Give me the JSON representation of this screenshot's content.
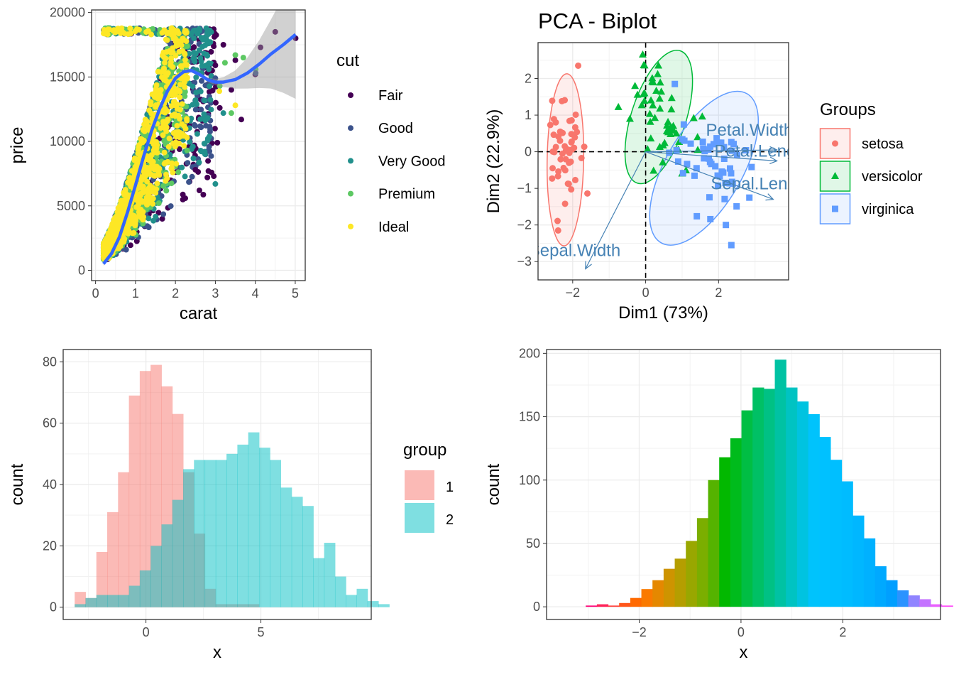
{
  "chart_data": [
    {
      "id": "diamonds",
      "type": "scatter",
      "xlabel": "carat",
      "ylabel": "price",
      "xlim": [
        -0.1,
        5.25
      ],
      "ylim": [
        -800,
        20200
      ],
      "x_ticks": [
        0,
        1,
        2,
        3,
        4,
        5
      ],
      "y_ticks": [
        0,
        5000,
        10000,
        15000,
        20000
      ],
      "legend": {
        "title": "cut",
        "position": "right",
        "entries": [
          {
            "label": "Fair",
            "color": "#440154"
          },
          {
            "label": "Good",
            "color": "#3b528b"
          },
          {
            "label": "Very Good",
            "color": "#21908c"
          },
          {
            "label": "Premium",
            "color": "#5dc863"
          },
          {
            "label": "Ideal",
            "color": "#fde725"
          }
        ]
      },
      "smooth_color": "#3366ff",
      "smooth": {
        "x": [
          0.2,
          0.4,
          0.6,
          0.8,
          1.0,
          1.2,
          1.4,
          1.6,
          1.8,
          2.0,
          2.2,
          2.4,
          2.6,
          2.8,
          3.0,
          3.2,
          3.5,
          3.8,
          4.1,
          4.4,
          4.7,
          5.01
        ],
        "y": [
          500,
          1300,
          2600,
          4500,
          6600,
          8800,
          10800,
          12500,
          13900,
          14900,
          15400,
          15500,
          15200,
          14800,
          14600,
          14600,
          14800,
          15300,
          16000,
          16800,
          17500,
          18300
        ]
      },
      "outliers": [
        {
          "x": 3.0,
          "y": 15900,
          "cut": "Fair"
        },
        {
          "x": 3.2,
          "y": 17500,
          "cut": "Fair"
        },
        {
          "x": 3.4,
          "y": 14000,
          "cut": "Fair"
        },
        {
          "x": 3.65,
          "y": 11700,
          "cut": "Fair"
        },
        {
          "x": 4.0,
          "y": 15200,
          "cut": "Fair"
        },
        {
          "x": 4.13,
          "y": 17300,
          "cut": "Fair"
        },
        {
          "x": 4.5,
          "y": 18500,
          "cut": "Fair"
        },
        {
          "x": 5.01,
          "y": 18000,
          "cut": "Fair"
        },
        {
          "x": 3.01,
          "y": 13000,
          "cut": "Fair"
        },
        {
          "x": 3.11,
          "y": 12600,
          "cut": "Fair"
        },
        {
          "x": 3.5,
          "y": 16300,
          "cut": "Fair"
        },
        {
          "x": 3.05,
          "y": 9900,
          "cut": "Fair"
        },
        {
          "x": 4.01,
          "y": 15600,
          "cut": "Premium"
        },
        {
          "x": 3.4,
          "y": 12200,
          "cut": "Premium"
        },
        {
          "x": 3.24,
          "y": 16100,
          "cut": "Premium"
        },
        {
          "x": 3.5,
          "y": 16700,
          "cut": "Premium"
        },
        {
          "x": 3.7,
          "y": 16500,
          "cut": "Premium"
        },
        {
          "x": 3.11,
          "y": 14300,
          "cut": "Premium"
        },
        {
          "x": 4.01,
          "y": 15300,
          "cut": "Good"
        },
        {
          "x": 3.0,
          "y": 14900,
          "cut": "Good"
        },
        {
          "x": 3.2,
          "y": 12200,
          "cut": "Very Good"
        },
        {
          "x": 3.0,
          "y": 6700,
          "cut": "Very Good"
        },
        {
          "x": 3.1,
          "y": 13900,
          "cut": "Ideal"
        },
        {
          "x": 3.5,
          "y": 12800,
          "cut": "Ideal"
        },
        {
          "x": 2.8,
          "y": 7200,
          "cut": "Fair"
        },
        {
          "x": 2.6,
          "y": 6200,
          "cut": "Fair"
        },
        {
          "x": 2.5,
          "y": 7800,
          "cut": "Fair"
        }
      ]
    },
    {
      "id": "pca",
      "type": "scatter",
      "title": "PCA - Biplot",
      "xlabel": "Dim1 (73%)",
      "ylabel": "Dim2 (22.9%)",
      "xlim": [
        -2.95,
        3.92
      ],
      "ylim": [
        -3.5,
        2.98
      ],
      "x_ticks": [
        -2,
        0,
        2
      ],
      "y_ticks": [
        -3,
        -2,
        -1,
        0,
        1,
        2
      ],
      "legend": {
        "title": "Groups",
        "position": "right",
        "entries": [
          {
            "label": "setosa",
            "color": "#f8766d",
            "shape": "circle"
          },
          {
            "label": "versicolor",
            "color": "#00ba38",
            "shape": "triangle"
          },
          {
            "label": "virginica",
            "color": "#619cff",
            "shape": "square"
          }
        ]
      },
      "groups": [
        {
          "name": "setosa",
          "center": [
            -2.22,
            0.0
          ],
          "sd": [
            0.2,
            0.75
          ],
          "n": 50,
          "extra": [
            [
              -1.85,
              2.35
            ],
            [
              -2.55,
              -0.45
            ],
            [
              -2.4,
              -2.15
            ]
          ]
        },
        {
          "name": "versicolor",
          "center": [
            0.5,
            0.9
          ],
          "sd": [
            0.5,
            0.6
          ],
          "n": 50,
          "extra": [
            [
              -0.08,
              2.65
            ],
            [
              0.35,
              2.35
            ],
            [
              1.0,
              -0.6
            ]
          ]
        },
        {
          "name": "virginica",
          "center": [
            1.8,
            -0.4
          ],
          "sd": [
            0.55,
            0.55
          ],
          "n": 50,
          "extra": [
            [
              2.35,
              -2.55
            ],
            [
              2.2,
              -2.0
            ],
            [
              0.8,
              1.85
            ]
          ]
        }
      ],
      "ellipses": [
        {
          "group": "setosa",
          "cx": -2.2,
          "cy": -0.22,
          "rx": 0.5,
          "ry": 2.35,
          "angle": 1
        },
        {
          "group": "versicolor",
          "cx": 0.36,
          "cy": 0.95,
          "rx": 0.75,
          "ry": 1.9,
          "angle": 18
        },
        {
          "group": "virginica",
          "cx": 1.6,
          "cy": -0.45,
          "rx": 1.05,
          "ry": 2.35,
          "angle": 30
        }
      ],
      "variable_color": "#4682b4",
      "variables": [
        {
          "label": "Petal.Width",
          "x": 3.6,
          "y": 0.05
        },
        {
          "label": "Petal.Length",
          "x": 3.6,
          "y": -0.25
        },
        {
          "label": "Sepal.Length",
          "x": 3.5,
          "y": -1.3
        },
        {
          "label": "Sepal.Width",
          "x": -1.65,
          "y": -3.2
        }
      ]
    },
    {
      "id": "hist-groups",
      "type": "bar",
      "xlabel": "x",
      "ylabel": "count",
      "xlim": [
        -3.6,
        9.8
      ],
      "ylim": [
        -4,
        84
      ],
      "x_ticks": [
        0,
        5
      ],
      "y_ticks": [
        0,
        20,
        40,
        60,
        80
      ],
      "bin_start": -3.1,
      "bin_width": 0.4718,
      "legend": {
        "title": "group",
        "position": "right",
        "entries": [
          {
            "label": "1",
            "color": "#f8766d"
          },
          {
            "label": "2",
            "color": "#00bfc4"
          }
        ]
      },
      "series": [
        {
          "name": "1",
          "counts": [
            5,
            3,
            18,
            31,
            44,
            69,
            77,
            79,
            72,
            63,
            44,
            24,
            6,
            1,
            1,
            1,
            1,
            0,
            0,
            0,
            0,
            0,
            0,
            0,
            0,
            0,
            0,
            0
          ]
        },
        {
          "name": "2",
          "counts": [
            1,
            3,
            4,
            4,
            4,
            7,
            12,
            20,
            27,
            35,
            45,
            48,
            48,
            48,
            50,
            53,
            57,
            52,
            48,
            39,
            36,
            33,
            16,
            21,
            10,
            4,
            6,
            2,
            1
          ]
        }
      ]
    },
    {
      "id": "hist-gradient",
      "type": "bar",
      "xlabel": "x",
      "ylabel": "count",
      "xlim": [
        -3.82,
        3.92
      ],
      "ylim": [
        -10,
        203
      ],
      "x_ticks": [
        -2,
        0,
        2
      ],
      "y_ticks": [
        0,
        50,
        100,
        150,
        200
      ],
      "bin_start": -3.05,
      "bin_width": 0.2185,
      "counts": [
        1,
        2,
        1,
        3,
        7,
        14,
        21,
        30,
        38,
        52,
        70,
        100,
        118,
        133,
        155,
        173,
        172,
        195,
        173,
        162,
        152,
        134,
        116,
        99,
        72,
        54,
        32,
        21,
        13,
        9,
        6,
        2,
        1,
        0,
        3
      ]
    }
  ]
}
